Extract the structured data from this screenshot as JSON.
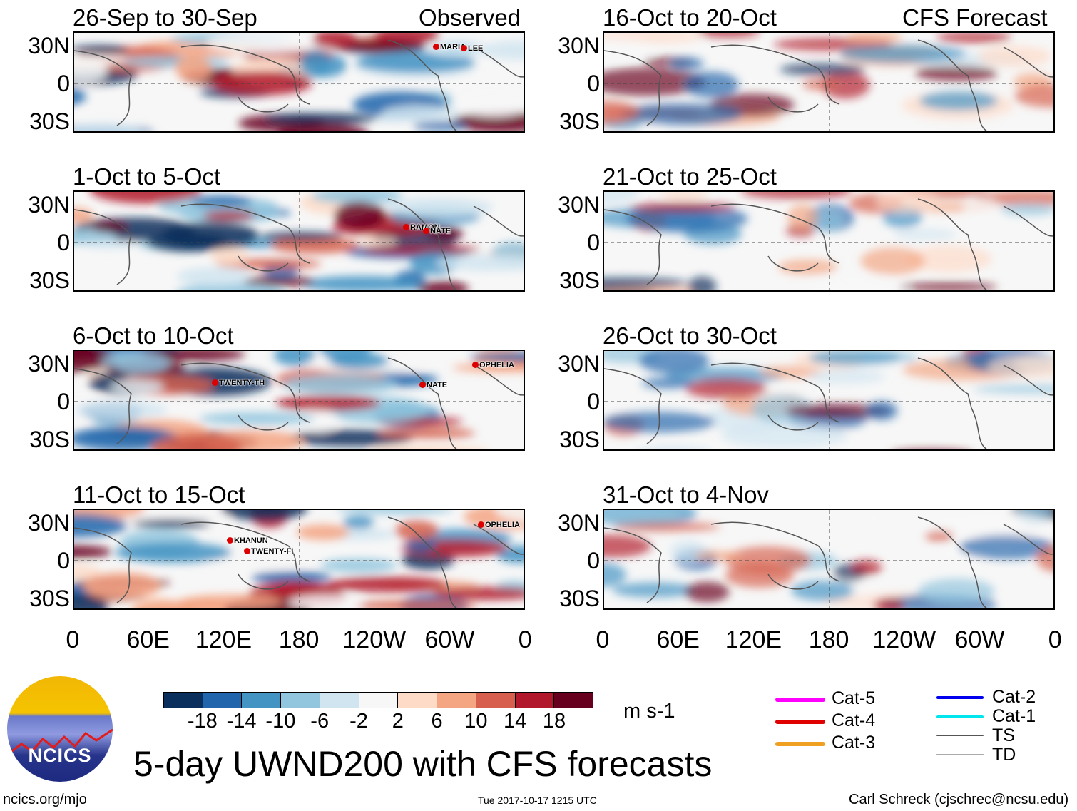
{
  "header": {
    "left_title": "Observed",
    "right_title": "CFS Forecast"
  },
  "panels_left": [
    {
      "title": "26-Sep to 30-Sep",
      "storms": [
        "MARIA",
        "LEE"
      ]
    },
    {
      "title": "1-Oct to 5-Oct",
      "storms": [
        "RAMON",
        "NATE"
      ]
    },
    {
      "title": "6-Oct to 10-Oct",
      "storms": [
        "TWENTY-TH",
        "NATE",
        "OPHELIA"
      ]
    },
    {
      "title": "11-Oct to 15-Oct",
      "storms": [
        "KHANUN",
        "TWENTY-FI",
        "OPHELIA"
      ]
    }
  ],
  "panels_right": [
    {
      "title": "16-Oct to 20-Oct"
    },
    {
      "title": "21-Oct to 25-Oct"
    },
    {
      "title": "26-Oct to 30-Oct"
    },
    {
      "title": "31-Oct to 4-Nov"
    }
  ],
  "y_ticks": [
    "30N",
    "0",
    "30S"
  ],
  "x_ticks": [
    "0",
    "60E",
    "120E",
    "180",
    "120W",
    "60W",
    "0"
  ],
  "colorbar": {
    "labels": [
      "-18",
      "-14",
      "-10",
      "-6",
      "-2",
      "2",
      "6",
      "10",
      "14",
      "18"
    ],
    "units": "m s-1",
    "colors": [
      "#0a2f5c",
      "#2166ac",
      "#4393c3",
      "#92c5de",
      "#d1e5f0",
      "#f7f7f7",
      "#fddbc7",
      "#f4a582",
      "#d6604d",
      "#b2182b",
      "#67001f"
    ]
  },
  "legend": [
    {
      "label": "Cat-5",
      "color": "#ff00ff"
    },
    {
      "label": "Cat-4",
      "color": "#e00000"
    },
    {
      "label": "Cat-3",
      "color": "#f0a020"
    },
    {
      "label": "Cat-2",
      "color": "#0000ee"
    },
    {
      "label": "Cat-1",
      "color": "#00e5ee"
    },
    {
      "label": "TS",
      "color": "#555555"
    },
    {
      "label": "TD",
      "color": "#aaaaaa"
    }
  ],
  "main_title": "5-day UWND200 with CFS forecasts",
  "logo_text": "NCICS",
  "footer": {
    "url": "ncics.org/mjo",
    "timestamp": "Tue 2017-10-17 1215 UTC",
    "credit": "Carl Schreck (cjschrec@ncsu.edu)"
  }
}
